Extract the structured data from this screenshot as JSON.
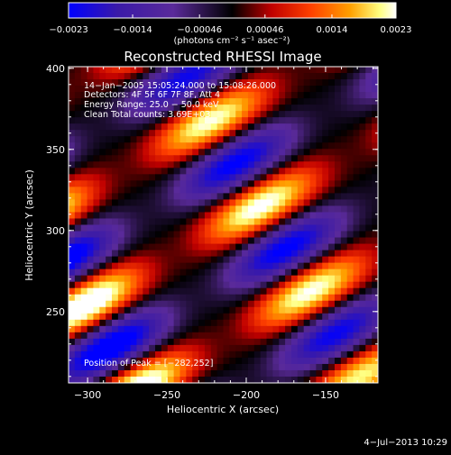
{
  "chart_data": {
    "type": "heatmap",
    "title": "Reconstructed RHESSI Image",
    "xlabel": "Heliocentric X (arcsec)",
    "ylabel": "Heliocentric Y (arcsec)",
    "xlim": [
      -312,
      -117
    ],
    "ylim": [
      206,
      401
    ],
    "x_ticks": [
      -300,
      -250,
      -200,
      -150
    ],
    "x_tick_labels": [
      "−300",
      "−250",
      "−200",
      "−150"
    ],
    "y_ticks": [
      250,
      300,
      350,
      400
    ],
    "y_tick_labels": [
      "250",
      "300",
      "350",
      "400"
    ],
    "colorbar": {
      "ticks": [
        -0.0023,
        -0.0014,
        -0.00046,
        0.00046,
        0.0014,
        0.0023
      ],
      "tick_labels": [
        "−0.0023",
        "−0.0014",
        "−0.00046",
        "0.00046",
        "0.0014",
        "0.0023"
      ],
      "units_label": "(photons cm⁻² s⁻¹ asec⁻²)",
      "range": [
        -0.0023,
        0.0023
      ],
      "colors": [
        "#0000ff",
        "#3a1aa8",
        "#5a2a9a",
        "#000000",
        "#c00000",
        "#ff4000",
        "#ffa000",
        "#ffff80",
        "#ffffff"
      ]
    },
    "info_lines": [
      "14−Jan−2005 15:05:24.000 to 15:08:26.000",
      "Detectors: 4F 5F 6F 7F 8F, Att 4",
      "Energy Range: 25.0 − 50.0 keV",
      "Clean     Total counts: 3.69E+03"
    ],
    "peak_label": "Position of Peak = [−282,252]",
    "peak_position": [
      -282,
      252
    ],
    "grid": false,
    "legend": "none"
  },
  "footer": {
    "timestamp": "4−Jul−2013 10:29"
  }
}
